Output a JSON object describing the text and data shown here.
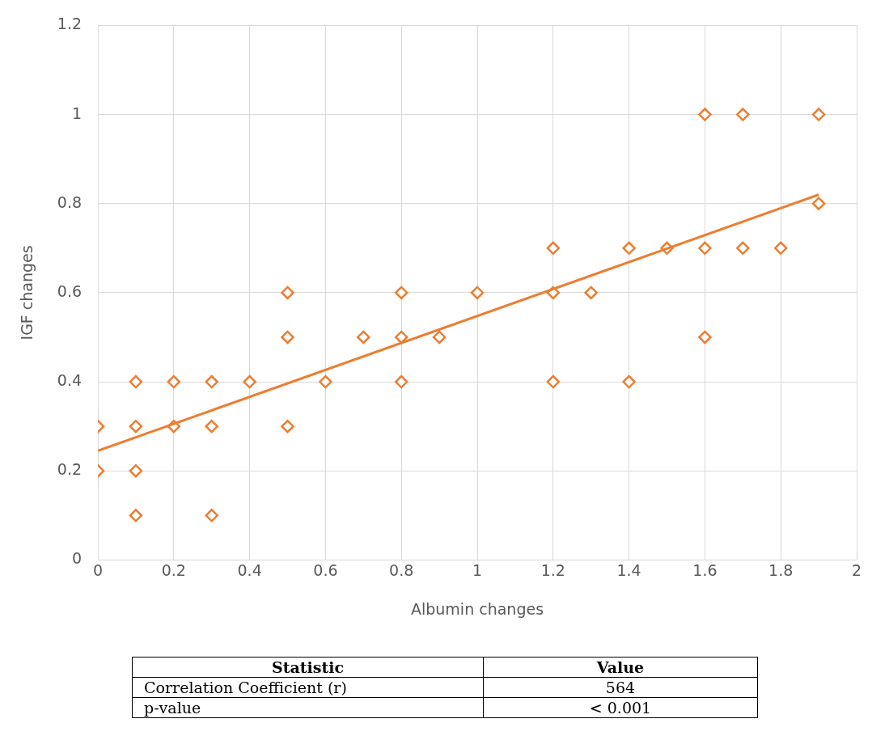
{
  "chart_data": [
    {
      "type": "scatter",
      "xlabel": "Albumin changes",
      "ylabel": "IGF changes",
      "xlim": [
        0,
        2
      ],
      "ylim": [
        0,
        1.2
      ],
      "xticks": [
        0,
        0.2,
        0.4,
        0.6,
        0.8,
        1,
        1.2,
        1.4,
        1.6,
        1.8,
        2
      ],
      "yticks": [
        0,
        0.2,
        0.4,
        0.6,
        0.8,
        1,
        1.2
      ],
      "grid": true,
      "legend": false,
      "series": [
        {
          "type": "scatter",
          "marker": "diamond",
          "color": "#ed7d31",
          "x": [
            0,
            0,
            0.1,
            0.1,
            0.1,
            0.1,
            0.2,
            0.2,
            0.3,
            0.3,
            0.3,
            0.4,
            0.5,
            0.5,
            0.5,
            0.6,
            0.7,
            0.8,
            0.8,
            0.8,
            0.9,
            1,
            1.2,
            1.2,
            1.2,
            1.3,
            1.4,
            1.4,
            1.5,
            1.6,
            1.6,
            1.6,
            1.7,
            1.7,
            1.8,
            1.9,
            1.9
          ],
          "values": [
            0.3,
            0.2,
            0.4,
            0.3,
            0.2,
            0.1,
            0.4,
            0.3,
            0.4,
            0.3,
            0.1,
            0.4,
            0.6,
            0.5,
            0.3,
            0.4,
            0.5,
            0.6,
            0.5,
            0.4,
            0.5,
            0.6,
            0.7,
            0.6,
            0.4,
            0.6,
            0.7,
            0.4,
            0.7,
            1,
            0.7,
            0.5,
            1,
            0.7,
            0.7,
            1,
            0.8
          ]
        },
        {
          "type": "line",
          "marker": "none",
          "color": "#ed7d31",
          "x": [
            0,
            1.9
          ],
          "values": [
            0.245,
            0.82
          ]
        }
      ]
    },
    {
      "type": "other",
      "annotations": [
        "Statistic",
        "Value",
        "Correlation Coefficient (r)",
        "564",
        "p-value",
        "< 0.001"
      ]
    }
  ]
}
